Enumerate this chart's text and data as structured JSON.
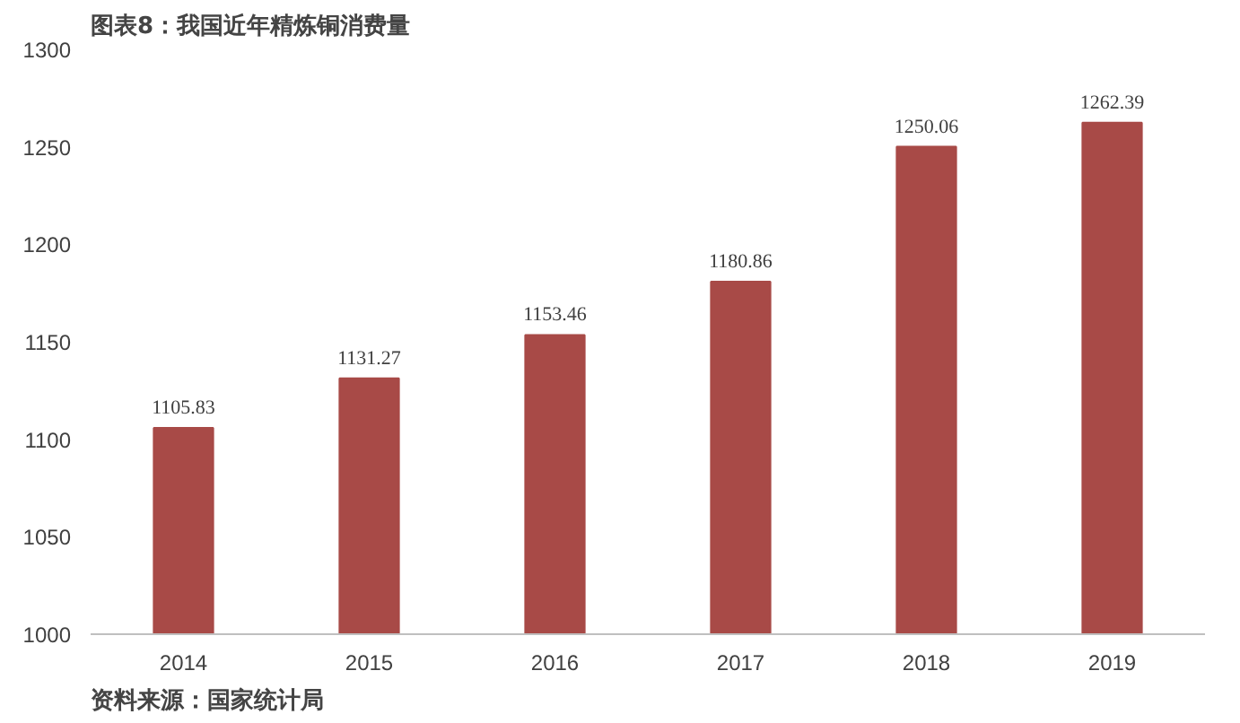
{
  "chart_data": {
    "type": "bar",
    "title": "图表8：我国近年精炼铜消费量",
    "categories": [
      "2014",
      "2015",
      "2016",
      "2017",
      "2018",
      "2019"
    ],
    "values": [
      1105.83,
      1131.27,
      1153.46,
      1180.86,
      1250.06,
      1262.39
    ],
    "color": "#a84a47",
    "ylim": [
      1000,
      1300
    ],
    "yticks": [
      1000,
      1050,
      1100,
      1150,
      1200,
      1250,
      1300
    ],
    "data_labels": true,
    "annotations": [
      "资料来源：国家统计局"
    ]
  }
}
